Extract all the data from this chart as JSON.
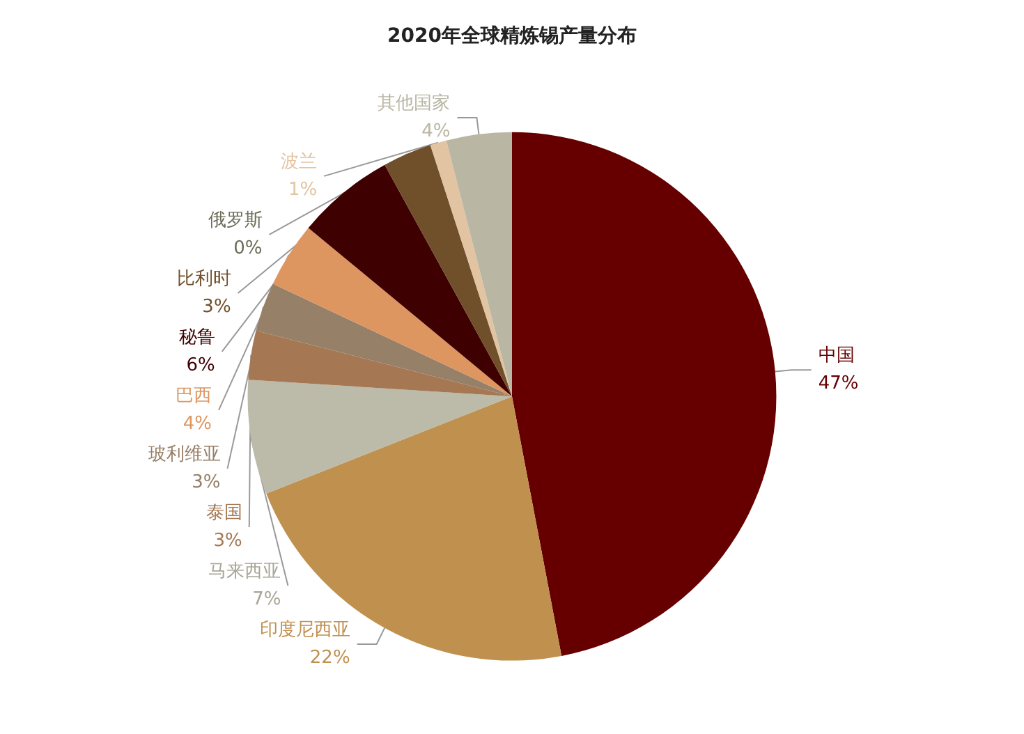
{
  "chart_data": {
    "type": "pie",
    "title": "2020年全球精炼锡产量分布",
    "categories": [
      "中国",
      "印度尼西亚",
      "马来西亚",
      "泰国",
      "玻利维亚",
      "巴西",
      "秘鲁",
      "比利时",
      "俄罗斯",
      "波兰",
      "其他国家"
    ],
    "values": [
      47,
      22,
      7,
      3,
      3,
      4,
      6,
      3,
      0,
      1,
      4
    ],
    "value_labels": [
      "47%",
      "22%",
      "7%",
      "3%",
      "3%",
      "4%",
      "6%",
      "3%",
      "0%",
      "1%",
      "4%"
    ],
    "colors": [
      "#660000",
      "#c0904f",
      "#bcbaa8",
      "#a57752",
      "#978068",
      "#de9660",
      "#3e0000",
      "#70502a",
      "#6b6b58",
      "#e2c4a2",
      "#bab6a4"
    ],
    "legend": false
  }
}
